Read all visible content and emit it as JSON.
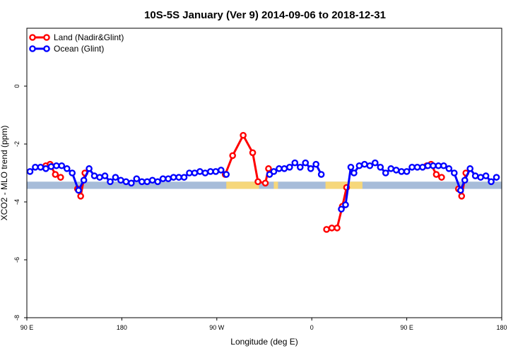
{
  "chart_data": {
    "type": "line",
    "title": "10S-5S January (Ver 9)   2014-09-06 to 2018-12-31",
    "xlabel": "Longitude (deg E)",
    "ylabel": "XCO2 - MLO trend (ppm)",
    "xlim": [
      90,
      540
    ],
    "ylim": [
      -8,
      2
    ],
    "x_ticks": [
      {
        "value": 90,
        "label": "90 E"
      },
      {
        "value": 180,
        "label": "180"
      },
      {
        "value": 270,
        "label": "90 W"
      },
      {
        "value": 360,
        "label": "0"
      },
      {
        "value": 450,
        "label": "90 E"
      },
      {
        "value": 540,
        "label": "180"
      }
    ],
    "y_ticks": [
      {
        "value": 0,
        "label": "0"
      },
      {
        "value": -2,
        "label": "-2"
      },
      {
        "value": -4,
        "label": "-4"
      },
      {
        "value": -6,
        "label": "-6"
      },
      {
        "value": -8,
        "label": "-8"
      }
    ],
    "grid": false,
    "legend_position": "top-left",
    "map_strip": {
      "y_range": [
        -3.55,
        -3.3
      ],
      "ocean_color": "#a7bcd9",
      "land_color": "#f6d77a",
      "land_x_ranges": [
        [
          279,
          310
        ],
        [
          324,
          328
        ],
        [
          373,
          408
        ]
      ]
    },
    "series": [
      {
        "name": "Land (Nadir&Glint)",
        "color": "#ff0000",
        "points": [
          [
            108,
            -2.75
          ],
          [
            112,
            -2.7
          ],
          [
            117,
            -3.05
          ],
          [
            122,
            -3.15
          ],
          [
            138,
            -3.55
          ],
          [
            141,
            -3.8
          ],
          [
            145,
            -3.0
          ],
          [
            278,
            -3.05
          ],
          [
            285,
            -2.4
          ],
          [
            295,
            -1.7
          ],
          [
            304,
            -2.3
          ],
          [
            309,
            -3.3
          ],
          [
            316,
            -3.35
          ],
          [
            319,
            -2.85
          ],
          [
            374,
            -4.95
          ],
          [
            379,
            -4.9
          ],
          [
            384,
            -4.9
          ],
          [
            389,
            -4.15
          ],
          [
            393,
            -3.5
          ],
          [
            469,
            -2.75
          ],
          [
            473,
            -2.7
          ],
          [
            478,
            -3.05
          ],
          [
            483,
            -3.15
          ],
          [
            499,
            -3.55
          ],
          [
            502,
            -3.8
          ],
          [
            506,
            -3.0
          ]
        ],
        "breaks_after": [
          3,
          6,
          13,
          18,
          22
        ]
      },
      {
        "name": "Ocean (Glint)",
        "color": "#0000ff",
        "points": [
          [
            93,
            -2.95
          ],
          [
            98,
            -2.8
          ],
          [
            103,
            -2.8
          ],
          [
            108,
            -2.85
          ],
          [
            113,
            -2.78
          ],
          [
            118,
            -2.75
          ],
          [
            123,
            -2.75
          ],
          [
            128,
            -2.85
          ],
          [
            133,
            -3.0
          ],
          [
            139,
            -3.6
          ],
          [
            144,
            -3.25
          ],
          [
            149,
            -2.85
          ],
          [
            154,
            -3.1
          ],
          [
            159,
            -3.15
          ],
          [
            164,
            -3.1
          ],
          [
            169,
            -3.3
          ],
          [
            174,
            -3.15
          ],
          [
            179,
            -3.25
          ],
          [
            184,
            -3.3
          ],
          [
            189,
            -3.35
          ],
          [
            194,
            -3.2
          ],
          [
            199,
            -3.3
          ],
          [
            204,
            -3.3
          ],
          [
            209,
            -3.25
          ],
          [
            214,
            -3.3
          ],
          [
            219,
            -3.2
          ],
          [
            224,
            -3.2
          ],
          [
            229,
            -3.15
          ],
          [
            234,
            -3.15
          ],
          [
            239,
            -3.15
          ],
          [
            244,
            -3.0
          ],
          [
            249,
            -3.0
          ],
          [
            254,
            -2.95
          ],
          [
            259,
            -3.0
          ],
          [
            264,
            -2.95
          ],
          [
            269,
            -2.95
          ],
          [
            274,
            -2.9
          ],
          [
            279,
            -3.05
          ],
          [
            320,
            -3.05
          ],
          [
            324,
            -2.95
          ],
          [
            329,
            -2.85
          ],
          [
            334,
            -2.85
          ],
          [
            339,
            -2.8
          ],
          [
            344,
            -2.65
          ],
          [
            349,
            -2.8
          ],
          [
            354,
            -2.65
          ],
          [
            359,
            -2.85
          ],
          [
            364,
            -2.7
          ],
          [
            369,
            -3.05
          ],
          [
            388,
            -4.25
          ],
          [
            392,
            -4.1
          ],
          [
            397,
            -2.8
          ],
          [
            400,
            -3.0
          ],
          [
            405,
            -2.75
          ],
          [
            410,
            -2.7
          ],
          [
            415,
            -2.75
          ],
          [
            420,
            -2.65
          ],
          [
            425,
            -2.8
          ],
          [
            430,
            -3.0
          ],
          [
            435,
            -2.85
          ],
          [
            440,
            -2.9
          ],
          [
            445,
            -2.95
          ],
          [
            450,
            -2.95
          ],
          [
            455,
            -2.8
          ],
          [
            460,
            -2.8
          ],
          [
            465,
            -2.8
          ],
          [
            470,
            -2.75
          ],
          [
            475,
            -2.75
          ],
          [
            480,
            -2.75
          ],
          [
            485,
            -2.75
          ],
          [
            490,
            -2.85
          ],
          [
            495,
            -3.0
          ],
          [
            501,
            -3.6
          ],
          [
            505,
            -3.25
          ],
          [
            510,
            -2.85
          ],
          [
            515,
            -3.1
          ],
          [
            520,
            -3.15
          ],
          [
            525,
            -3.1
          ],
          [
            530,
            -3.3
          ],
          [
            535,
            -3.15
          ]
        ],
        "breaks_after": [
          37,
          48
        ]
      }
    ]
  }
}
